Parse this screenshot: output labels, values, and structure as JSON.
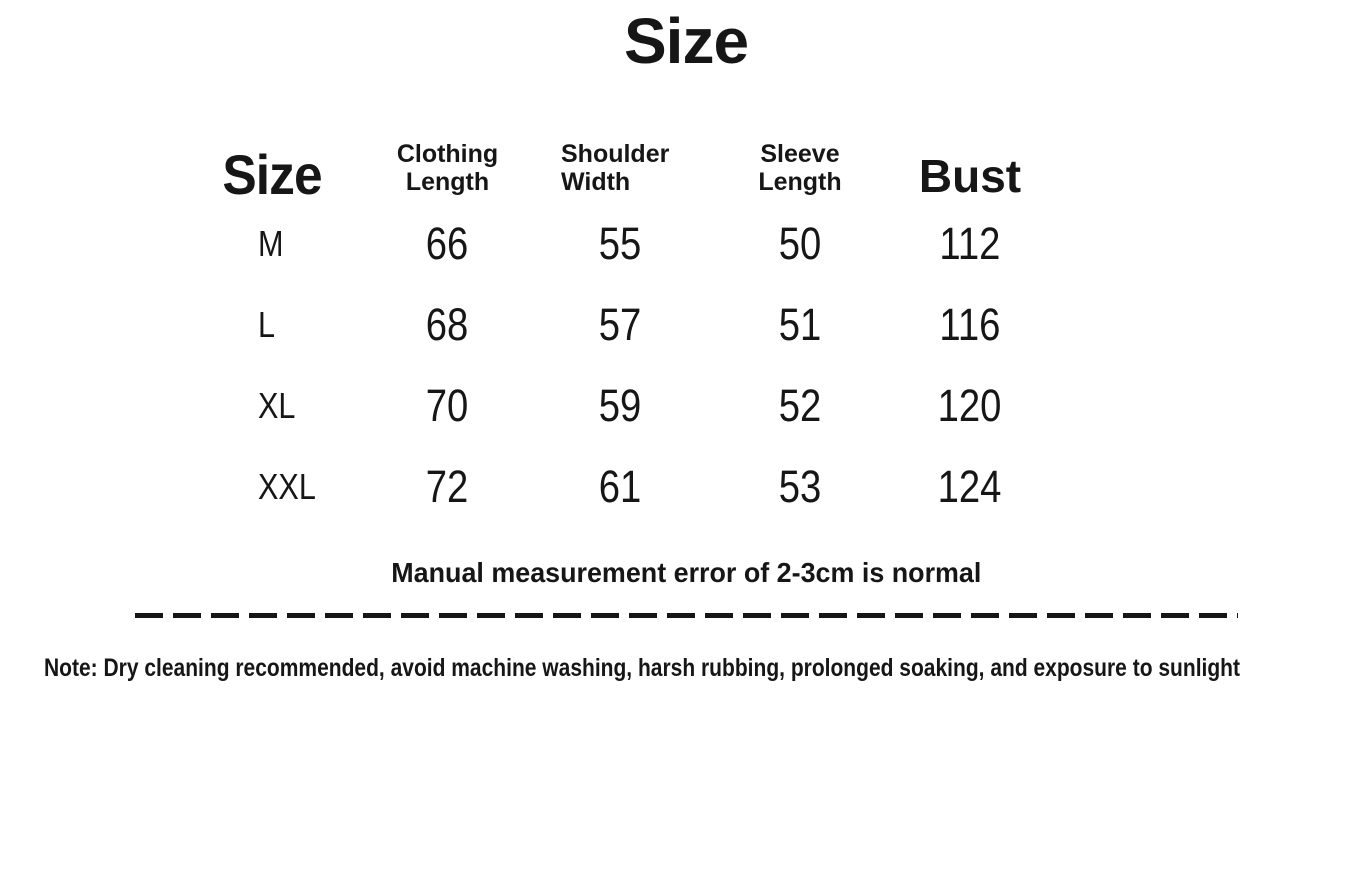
{
  "page": {
    "background": "#ffffff",
    "text_color": "#161616"
  },
  "chart_data": {
    "type": "table",
    "title": "Size",
    "columns": [
      "Size",
      "Clothing Length",
      "Shoulder Width",
      "Sleeve Length",
      "Bust"
    ],
    "rows": [
      [
        "M",
        66,
        55,
        50,
        112
      ],
      [
        "L",
        68,
        57,
        51,
        116
      ],
      [
        "XL",
        70,
        59,
        52,
        120
      ],
      [
        "XXL",
        72,
        61,
        53,
        124
      ]
    ],
    "legend_position": "none",
    "grid": false
  },
  "notes": {
    "measurement": "Manual measurement error of 2-3cm is normal",
    "care": "Note: Dry cleaning recommended, avoid machine washing, harsh rubbing, prolonged soaking, and exposure to sunlight"
  }
}
